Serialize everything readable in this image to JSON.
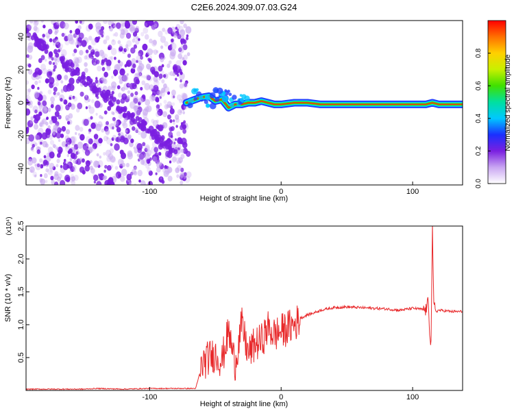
{
  "title": "C2E6.2024.309.07.03.G24",
  "colors": {
    "speckle": "#7a1fe0",
    "snr_line": "#e8282a",
    "background": "#ffffff"
  },
  "colorbar": {
    "label": "Normalized spectral amplitude",
    "ticks": [
      "0.0",
      "0.2",
      "0.4",
      "0.6",
      "0.8"
    ],
    "tick_values": [
      0.0,
      0.2,
      0.4,
      0.6,
      0.8
    ],
    "range": [
      0,
      1
    ]
  },
  "chart_data": [
    {
      "type": "heatmap",
      "xlabel": "Height of straight line (km)",
      "ylabel": "Frequency (Hz)",
      "xlim": [
        -194,
        138
      ],
      "ylim": [
        -50,
        50
      ],
      "xticks": [
        "-100",
        "0",
        "100"
      ],
      "xtick_values": [
        -100,
        0,
        100
      ],
      "yticks": [
        "40",
        "20",
        "0",
        "-20",
        "-40"
      ],
      "ytick_values": [
        40,
        20,
        0,
        -20,
        -40
      ],
      "grid": false,
      "noise_region_x": [
        -194,
        -70
      ],
      "signal_ridge": {
        "x": [
          -72,
          -62,
          -55,
          -50,
          -45,
          -40,
          -35,
          -30,
          -25,
          -20,
          -15,
          -10,
          -5,
          0,
          10,
          20,
          30,
          40,
          50,
          60,
          70,
          80,
          90,
          100,
          105,
          110,
          115,
          120,
          130,
          138
        ],
        "frequency": [
          0,
          3,
          4,
          1,
          2,
          -3,
          -1,
          -1,
          0,
          0,
          1,
          0,
          -1,
          -1,
          0,
          0,
          -1,
          -1,
          -1,
          -1,
          -1,
          -1,
          -1,
          -1,
          -1,
          -1,
          0,
          -1,
          -1,
          -1
        ]
      }
    },
    {
      "type": "line",
      "xlabel": "Height of straight line (km)",
      "ylabel": "SNR (10 * v/v)",
      "y_multiplier": "(x10⁴)",
      "xlim": [
        -194,
        138
      ],
      "ylim": [
        0,
        2.5
      ],
      "xticks": [
        "-100",
        "0",
        "100"
      ],
      "xtick_values": [
        -100,
        0,
        100
      ],
      "yticks": [
        "0.5",
        "1.0",
        "1.5",
        "2.0",
        "2.5"
      ],
      "ytick_values": [
        0.5,
        1.0,
        1.5,
        2.0,
        2.5
      ],
      "grid": false,
      "series": [
        {
          "x": [
            -194,
            -170,
            -150,
            -140,
            -120,
            -100,
            -80,
            -65,
            -60,
            -55,
            -50,
            -45,
            -40,
            -35,
            -30,
            -25,
            -20,
            -15,
            -10,
            -5,
            0,
            5,
            10,
            15,
            20,
            25,
            30,
            40,
            50,
            60,
            70,
            80,
            90,
            100,
            105,
            110,
            112,
            113,
            114,
            115,
            116,
            118,
            120,
            125,
            130,
            138
          ],
          "y": [
            0.02,
            0.02,
            0.02,
            0.03,
            0.02,
            0.03,
            0.03,
            0.03,
            0.4,
            0.5,
            0.55,
            0.45,
            0.9,
            0.4,
            1.0,
            0.55,
            0.7,
            0.75,
            0.95,
            0.85,
            0.9,
            0.95,
            1.0,
            1.1,
            1.15,
            1.18,
            1.22,
            1.26,
            1.27,
            1.26,
            1.25,
            1.24,
            1.22,
            1.25,
            1.24,
            1.22,
            1.35,
            0.9,
            0.7,
            2.5,
            1.3,
            1.2,
            1.22,
            1.21,
            1.2,
            1.2
          ]
        }
      ]
    }
  ]
}
